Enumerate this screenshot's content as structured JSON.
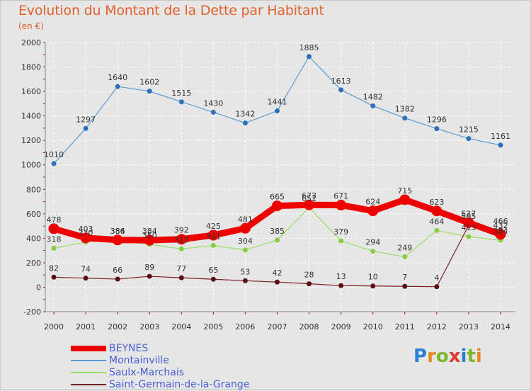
{
  "title": "Evolution du Montant de la Dette par Habitant",
  "subtitle": "(en €)",
  "logo": {
    "letters": [
      "P",
      "r",
      "o",
      "x",
      "i",
      "t",
      "i"
    ],
    "colors": [
      "#2b7fd4",
      "#e88a1a",
      "#7ab82e",
      "#e03a2e",
      "#2b7fd4",
      "#7ab82e",
      "#e88a1a"
    ]
  },
  "chart_data": {
    "type": "line",
    "title": "Evolution du Montant de la Dette par Habitant",
    "ylabel": "(en €)",
    "xlabel": "",
    "ylim": [
      -200,
      2000
    ],
    "yticks": [
      -200,
      0,
      200,
      400,
      600,
      800,
      1000,
      1200,
      1400,
      1600,
      1800,
      2000
    ],
    "grid": true,
    "legend_position": "bottom-left",
    "categories": [
      "2000",
      "2001",
      "2002",
      "2003",
      "2004",
      "2005",
      "2006",
      "2007",
      "2008",
      "2009",
      "2010",
      "2011",
      "2012",
      "2013",
      "2014"
    ],
    "series": [
      {
        "name": "BEYNES",
        "color": "#ee0000",
        "values": [
          478,
          403,
          386,
          384,
          392,
          425,
          481,
          665,
          673,
          671,
          624,
          715,
          623,
          527,
          432
        ],
        "labels": [
          "478",
          "403",
          "386",
          "384",
          "392",
          "425",
          "481",
          "665",
          "673",
          "671",
          "624",
          "715",
          "623",
          "527",
          "432"
        ]
      },
      {
        "name": "Montainville",
        "color": "#4f8fd0",
        "values": [
          1010,
          1297,
          1640,
          1602,
          1515,
          1430,
          1342,
          1441,
          1885,
          1613,
          1482,
          1382,
          1296,
          1215,
          1161
        ],
        "labels": [
          "1010",
          "1297",
          "1640",
          "1602",
          "1515",
          "1430",
          "1342",
          "1441",
          "1885",
          "1613",
          "1482",
          "1382",
          "1296",
          "1215",
          "1161"
        ]
      },
      {
        "name": "Saulx-Marchais",
        "color": "#99dd66",
        "values": [
          318,
          370,
          384,
          350,
          313,
          341,
          304,
          385,
          651,
          379,
          294,
          249,
          464,
          413,
          384
        ],
        "labels": [
          "318",
          "370",
          "384",
          "350",
          "313",
          "341",
          "304",
          "385",
          "651",
          "379",
          "294",
          "249",
          "464",
          "413",
          "384"
        ]
      },
      {
        "name": "Saint-Germain-de-la-Grange",
        "color": "#7a1f1f",
        "values": [
          82,
          74,
          66,
          89,
          77,
          65,
          53,
          42,
          28,
          13,
          10,
          7,
          4,
          505,
          466
        ],
        "labels": [
          "82",
          "74",
          "66",
          "89",
          "77",
          "65",
          "53",
          "42",
          "28",
          "13",
          "10",
          "7",
          "4",
          "505",
          "466"
        ]
      }
    ]
  }
}
